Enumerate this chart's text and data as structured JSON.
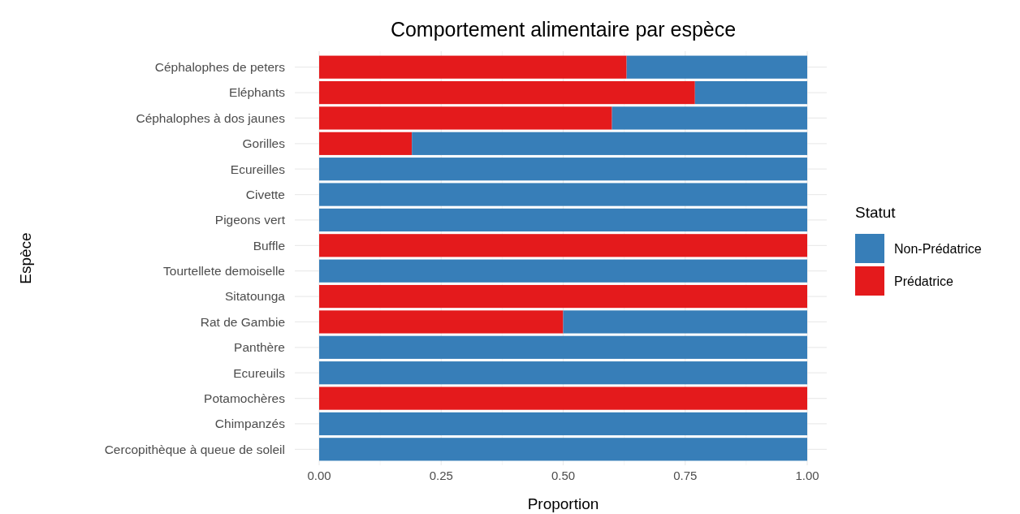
{
  "chart_data": {
    "type": "bar",
    "orientation": "horizontal",
    "stacked": true,
    "title": "Comportement alimentaire par espèce",
    "xlabel": "Proportion",
    "ylabel": "Espèce",
    "legend_title": "Statut",
    "legend": "right",
    "grid": true,
    "categories": [
      "Céphalophes de peters",
      "Eléphants",
      "Céphalophes à dos jaunes",
      "Gorilles",
      "Ecureilles",
      "Civette",
      "Pigeons vert",
      "Buffle",
      "Tourtellete demoiselle",
      "Sitatounga",
      "Rat de Gambie",
      "Panthère",
      "Ecureuils",
      "Potamochères",
      "Chimpanzés",
      "Cercopithèque à queue de soleil"
    ],
    "series": [
      {
        "name": "Prédatrice",
        "color": "#e41a1c",
        "values": [
          0.63,
          0.77,
          0.6,
          0.19,
          0,
          0,
          0,
          1,
          0,
          1,
          0.5,
          0,
          0,
          1,
          0,
          0
        ]
      },
      {
        "name": "Non-Prédatrice",
        "color": "#377eb8",
        "values": [
          0.37,
          0.23,
          0.4,
          0.81,
          1,
          1,
          1,
          0,
          1,
          0,
          0.5,
          1,
          1,
          0,
          1,
          1
        ]
      }
    ],
    "xlim": [
      0,
      1
    ],
    "xticks": [
      {
        "value": 0,
        "label": "0.00"
      },
      {
        "value": 0.25,
        "label": "0.25"
      },
      {
        "value": 0.5,
        "label": "0.50"
      },
      {
        "value": 0.75,
        "label": "0.75"
      },
      {
        "value": 1,
        "label": "1.00"
      }
    ]
  }
}
